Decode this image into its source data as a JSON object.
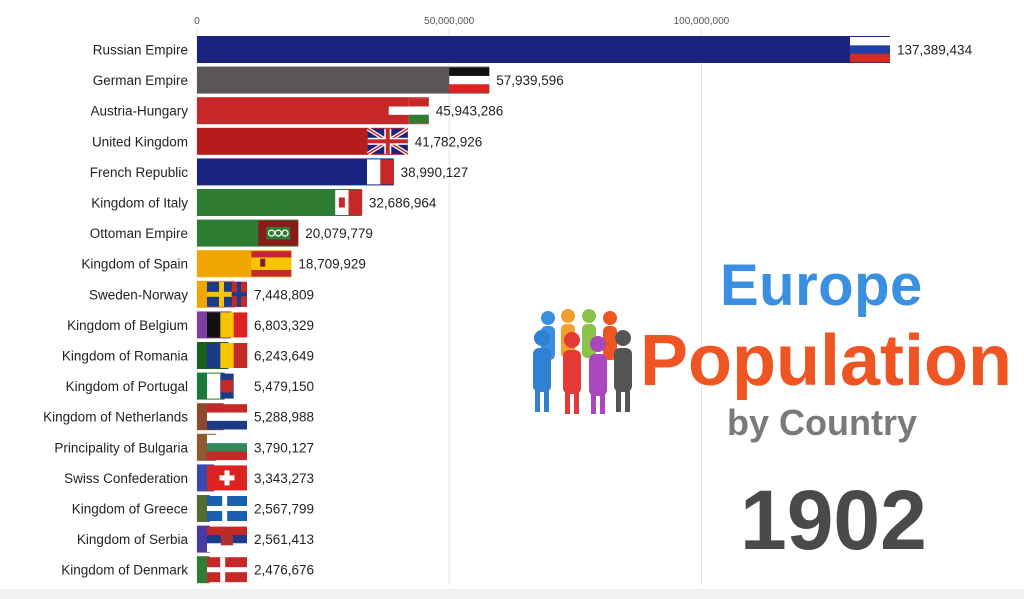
{
  "title": {
    "line1": "Europe",
    "line2": "Population",
    "line3": "by Country",
    "year": "1902"
  },
  "colors": {
    "title_line1": "#3b8fe0",
    "title_line2": "#ee5522",
    "title_line3": "#7a7a7a",
    "year": "#4a4a4a"
  },
  "chart_data": {
    "type": "bar",
    "orientation": "horizontal",
    "xlim": [
      0,
      137389434
    ],
    "xticks": [
      0,
      50000000,
      100000000
    ],
    "xtick_labels": [
      "0",
      "50,000,000",
      "100,000,000"
    ],
    "grid": true,
    "categories": [
      "Russian Empire",
      "German Empire",
      "Austria-Hungary",
      "United Kingdom",
      "French Republic",
      "Kingdom of Italy",
      "Ottoman Empire",
      "Kingdom of Spain",
      "Sweden-Norway",
      "Kingdom of Belgium",
      "Kingdom of Romania",
      "Kingdom of Portugal",
      "Kingdom of Netherlands",
      "Principality of Bulgaria",
      "Swiss Confederation",
      "Kingdom of Greece",
      "Kingdom of Serbia",
      "Kingdom of Denmark"
    ],
    "values": [
      137389434,
      57939596,
      45943286,
      41782926,
      38990127,
      32686964,
      20079779,
      18709929,
      7448809,
      6803329,
      6243649,
      5479150,
      5288988,
      3790127,
      3343273,
      2567799,
      2561413,
      2476676
    ],
    "value_labels": [
      "137,389,434",
      "57,939,596",
      "45,943,286",
      "41,782,926",
      "38,990,127",
      "32,686,964",
      "20,079,779",
      "18,709,929",
      "7,448,809",
      "6,803,329",
      "6,243,649",
      "5,479,150",
      "5,288,988",
      "3,790,127",
      "3,343,273",
      "2,567,799",
      "2,561,413",
      "2,476,676"
    ],
    "bar_colors": [
      "#1a237e",
      "#5a5658",
      "#c62828",
      "#b71c1c",
      "#1a237e",
      "#2e7d32",
      "#2e7d32",
      "#f0a500",
      "#f0a500",
      "#7b3fa0",
      "#1b5e20",
      "#1b7a3a",
      "#8d4a2a",
      "#8d5a30",
      "#3949ab",
      "#556b2f",
      "#4a3aa0",
      "#2e7d32"
    ],
    "flag_icons": [
      "russia-flag-icon",
      "german-empire-flag-icon",
      "austria-hungary-flag-icon",
      "uk-flag-icon",
      "france-flag-icon",
      "italy-flag-icon",
      "ottoman-flag-icon",
      "spain-flag-icon",
      "sweden-norway-flag-icon",
      "belgium-flag-icon",
      "romania-flag-icon",
      "portugal-flag-icon",
      "netherlands-flag-icon",
      "bulgaria-flag-icon",
      "switzerland-flag-icon",
      "greece-flag-icon",
      "serbia-flag-icon",
      "denmark-flag-icon"
    ]
  }
}
